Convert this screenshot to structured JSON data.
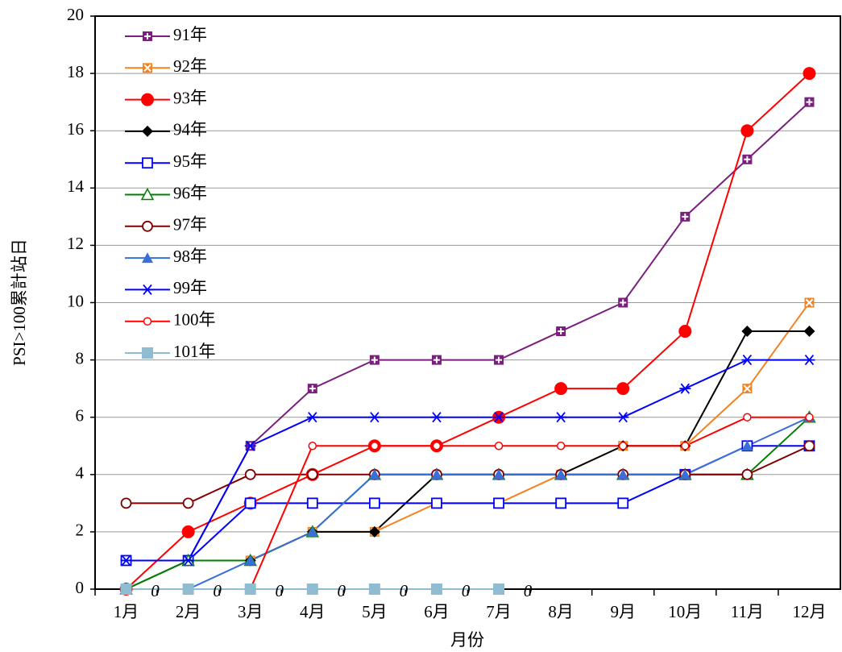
{
  "chart_data": {
    "type": "line",
    "ylabel": "PSI>100累計站日",
    "xlabel": "月份",
    "categories": [
      "1月",
      "2月",
      "3月",
      "4月",
      "5月",
      "6月",
      "7月",
      "8月",
      "9月",
      "10月",
      "11月",
      "12月"
    ],
    "ylim": [
      0,
      20
    ],
    "yticks": [
      0,
      2,
      4,
      6,
      8,
      10,
      12,
      14,
      16,
      18,
      20
    ],
    "grid": true,
    "legend": "upper-left",
    "series": [
      {
        "name": "91年",
        "color": "#7b1f7f",
        "marker": "plus-square",
        "values": [
          1,
          1,
          5,
          7,
          8,
          8,
          8,
          9,
          10,
          13,
          15,
          17
        ]
      },
      {
        "name": "92年",
        "color": "#f58220",
        "marker": "x-square",
        "values": [
          1,
          1,
          1,
          2,
          2,
          3,
          3,
          4,
          5,
          5,
          7,
          10
        ]
      },
      {
        "name": "93年",
        "color": "#ff0000",
        "marker": "circle",
        "values": [
          0,
          2,
          3,
          4,
          5,
          5,
          6,
          7,
          7,
          9,
          16,
          18
        ]
      },
      {
        "name": "94年",
        "color": "#000000",
        "marker": "diamond",
        "values": [
          0,
          1,
          1,
          2,
          2,
          4,
          4,
          4,
          5,
          5,
          9,
          9
        ]
      },
      {
        "name": "95年",
        "color": "#0000ff",
        "marker": "square-open",
        "values": [
          1,
          1,
          3,
          3,
          3,
          3,
          3,
          3,
          3,
          4,
          5,
          5
        ]
      },
      {
        "name": "96年",
        "color": "#008000",
        "marker": "triangle-open",
        "values": [
          0,
          1,
          1,
          2,
          4,
          4,
          4,
          4,
          4,
          4,
          4,
          6
        ]
      },
      {
        "name": "97年",
        "color": "#800000",
        "marker": "circle-open",
        "values": [
          3,
          3,
          4,
          4,
          4,
          4,
          4,
          4,
          4,
          4,
          4,
          5
        ]
      },
      {
        "name": "98年",
        "color": "#3a6fd8",
        "marker": "triangle",
        "values": [
          0,
          0,
          1,
          2,
          4,
          4,
          4,
          4,
          4,
          4,
          5,
          6
        ]
      },
      {
        "name": "99年",
        "color": "#0000ff",
        "marker": "asterisk",
        "values": [
          1,
          1,
          5,
          6,
          6,
          6,
          6,
          6,
          6,
          7,
          8,
          8
        ]
      },
      {
        "name": "100年",
        "color": "#ff0000",
        "marker": "circle-small",
        "values": [
          0,
          0,
          0,
          5,
          5,
          5,
          5,
          5,
          5,
          5,
          6,
          6
        ]
      },
      {
        "name": "101年",
        "color": "#8fbcd0",
        "marker": "square",
        "data_labels": true,
        "values": [
          0,
          0,
          0,
          0,
          0,
          0,
          0,
          null,
          null,
          null,
          null,
          null
        ]
      }
    ]
  }
}
